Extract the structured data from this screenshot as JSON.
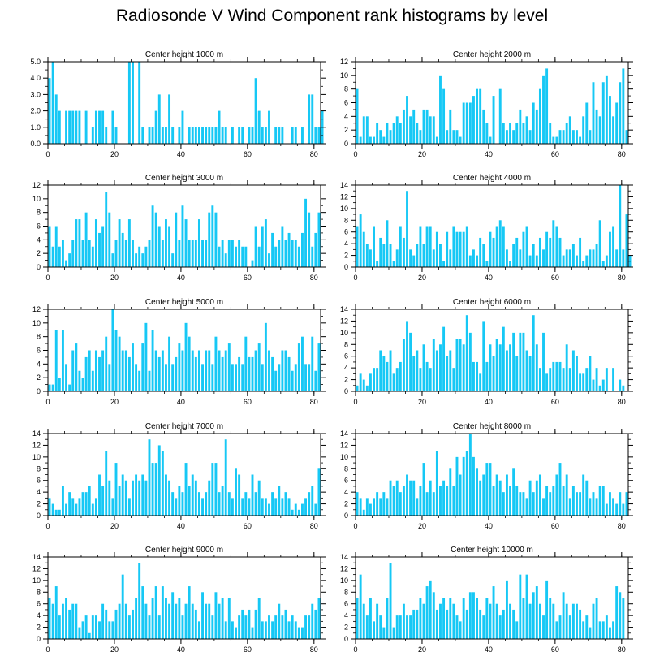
{
  "figure": {
    "title": "Radiosonde V Wind Component rank histograms by level",
    "bar_color": "#16c8f5"
  },
  "chart_data": [
    {
      "type": "bar",
      "title": "Center height 1000 m",
      "xlim": [
        0,
        82
      ],
      "ylim": [
        0,
        5
      ],
      "xticks": [
        0,
        20,
        40,
        60,
        80
      ],
      "yticks": [
        "0.0",
        "1.0",
        "2.0",
        "3.0",
        "4.0",
        "5.0"
      ],
      "values": [
        4,
        5,
        3,
        2,
        0,
        2,
        2,
        2,
        2,
        2,
        0,
        2,
        0,
        1,
        2,
        2,
        2,
        1,
        0,
        2,
        1,
        0,
        0,
        0,
        5,
        5,
        0,
        5,
        1,
        0,
        1,
        1,
        2,
        3,
        1,
        1,
        3,
        1,
        0,
        1,
        2,
        0,
        1,
        1,
        1,
        1,
        1,
        1,
        1,
        1,
        1,
        2,
        1,
        1,
        0,
        1,
        0,
        1,
        1,
        0,
        1,
        1,
        4,
        2,
        1,
        1,
        2,
        0,
        1,
        1,
        1,
        0,
        0,
        1,
        1,
        0,
        1,
        0,
        3,
        3,
        1,
        1,
        2
      ]
    },
    {
      "type": "bar",
      "title": "Center height 2000 m",
      "xlim": [
        0,
        82
      ],
      "ylim": [
        0,
        12
      ],
      "xticks": [
        0,
        20,
        40,
        60,
        80
      ],
      "yticks": [
        "0",
        "2",
        "4",
        "6",
        "8",
        "10",
        "12"
      ],
      "values": [
        8,
        1,
        4,
        4,
        1,
        1,
        3,
        2,
        1,
        3,
        2,
        3,
        4,
        3,
        5,
        7,
        4,
        5,
        3,
        2,
        5,
        5,
        4,
        4,
        1,
        10,
        8,
        2,
        5,
        2,
        2,
        1,
        6,
        6,
        6,
        7,
        8,
        8,
        5,
        3,
        1,
        7,
        0,
        8,
        3,
        2,
        3,
        2,
        3,
        5,
        3,
        4,
        2,
        6,
        5,
        8,
        10,
        11,
        3,
        1,
        1,
        2,
        2,
        3,
        4,
        2,
        2,
        1,
        4,
        6,
        2,
        9,
        5,
        4,
        9,
        10,
        7,
        4,
        6,
        9,
        11,
        2
      ]
    },
    {
      "type": "bar",
      "title": "Center height 3000 m",
      "xlim": [
        0,
        82
      ],
      "ylim": [
        0,
        12
      ],
      "xticks": [
        0,
        20,
        40,
        60,
        80
      ],
      "yticks": [
        "0",
        "2",
        "4",
        "6",
        "8",
        "10",
        "12"
      ],
      "values": [
        6,
        3,
        6,
        3,
        4,
        1,
        2,
        4,
        7,
        7,
        4,
        8,
        4,
        3,
        7,
        5,
        6,
        11,
        8,
        2,
        4,
        7,
        5,
        4,
        7,
        4,
        2,
        3,
        2,
        3,
        4,
        9,
        8,
        6,
        4,
        7,
        6,
        2,
        8,
        4,
        9,
        7,
        4,
        4,
        4,
        7,
        4,
        4,
        8,
        9,
        8,
        3,
        4,
        2,
        4,
        4,
        3,
        4,
        3,
        3,
        0,
        1,
        6,
        3,
        6,
        7,
        2,
        5,
        3,
        4,
        6,
        4,
        5,
        4,
        4,
        3,
        5,
        10,
        8,
        3,
        5,
        8
      ]
    },
    {
      "type": "bar",
      "title": "Center height 4000 m",
      "xlim": [
        0,
        82
      ],
      "ylim": [
        0,
        14
      ],
      "xticks": [
        0,
        20,
        40,
        60,
        80
      ],
      "yticks": [
        "0",
        "2",
        "4",
        "6",
        "8",
        "10",
        "12",
        "14"
      ],
      "values": [
        7,
        9,
        6,
        4,
        3,
        7,
        1,
        5,
        4,
        8,
        4,
        1,
        3,
        7,
        5,
        13,
        3,
        2,
        4,
        7,
        4,
        7,
        7,
        3,
        6,
        4,
        1,
        6,
        3,
        7,
        6,
        6,
        6,
        7,
        2,
        3,
        2,
        5,
        4,
        1,
        6,
        5,
        7,
        8,
        7,
        3,
        1,
        4,
        5,
        3,
        6,
        7,
        2,
        4,
        2,
        5,
        3,
        6,
        5,
        8,
        7,
        5,
        2,
        3,
        3,
        4,
        2,
        5,
        1,
        2,
        3,
        3,
        4,
        8,
        1,
        2,
        6,
        7,
        3,
        14,
        3,
        9,
        2
      ]
    },
    {
      "type": "bar",
      "title": "Center height 5000 m",
      "xlim": [
        0,
        82
      ],
      "ylim": [
        0,
        12
      ],
      "xticks": [
        0,
        20,
        40,
        60,
        80
      ],
      "yticks": [
        "0",
        "2",
        "4",
        "6",
        "8",
        "10",
        "12"
      ],
      "values": [
        1,
        1,
        9,
        2,
        9,
        4,
        1,
        6,
        7,
        3,
        2,
        5,
        6,
        3,
        6,
        5,
        6,
        8,
        4,
        12,
        9,
        8,
        6,
        6,
        5,
        7,
        4,
        3,
        7,
        10,
        3,
        9,
        6,
        5,
        6,
        4,
        8,
        4,
        5,
        7,
        6,
        10,
        8,
        6,
        5,
        6,
        4,
        6,
        6,
        4,
        8,
        6,
        5,
        6,
        7,
        4,
        4,
        5,
        4,
        8,
        5,
        5,
        6,
        7,
        4,
        10,
        6,
        5,
        3,
        4,
        6,
        6,
        5,
        3,
        4,
        7,
        8,
        4,
        4,
        8,
        3,
        7
      ]
    },
    {
      "type": "bar",
      "title": "Center height 6000 m",
      "xlim": [
        0,
        82
      ],
      "ylim": [
        0,
        14
      ],
      "xticks": [
        0,
        20,
        40,
        60,
        80
      ],
      "yticks": [
        "0",
        "2",
        "4",
        "6",
        "8",
        "10",
        "12",
        "14"
      ],
      "values": [
        1,
        3,
        2,
        1,
        3,
        4,
        4,
        7,
        6,
        5,
        7,
        3,
        4,
        5,
        9,
        12,
        10,
        6,
        7,
        4,
        8,
        5,
        4,
        9,
        7,
        8,
        11,
        6,
        7,
        4,
        9,
        9,
        8,
        13,
        10,
        5,
        5,
        3,
        12,
        5,
        8,
        6,
        9,
        8,
        11,
        7,
        8,
        10,
        6,
        10,
        10,
        7,
        6,
        13,
        8,
        4,
        10,
        3,
        4,
        5,
        5,
        5,
        4,
        8,
        4,
        7,
        6,
        3,
        3,
        4,
        6,
        2,
        4,
        1,
        2,
        4,
        0,
        4,
        0,
        2,
        1
      ]
    },
    {
      "type": "bar",
      "title": "Center height 7000 m",
      "xlim": [
        0,
        82
      ],
      "ylim": [
        0,
        14
      ],
      "xticks": [
        0,
        20,
        40,
        60,
        80
      ],
      "yticks": [
        "0",
        "2",
        "4",
        "6",
        "8",
        "10",
        "12",
        "14"
      ],
      "values": [
        3,
        2,
        1,
        1,
        5,
        2,
        4,
        3,
        2,
        3,
        4,
        4,
        5,
        2,
        3,
        7,
        5,
        11,
        6,
        3,
        9,
        5,
        7,
        6,
        3,
        6,
        7,
        6,
        7,
        6,
        13,
        9,
        9,
        12,
        11,
        7,
        6,
        4,
        3,
        5,
        4,
        9,
        5,
        7,
        6,
        4,
        3,
        4,
        6,
        9,
        9,
        4,
        5,
        13,
        4,
        3,
        8,
        7,
        3,
        4,
        3,
        7,
        4,
        6,
        3,
        3,
        2,
        4,
        3,
        5,
        3,
        4,
        3,
        1,
        2,
        1,
        2,
        3,
        4,
        5,
        2,
        8
      ]
    },
    {
      "type": "bar",
      "title": "Center height 8000 m",
      "xlim": [
        0,
        82
      ],
      "ylim": [
        0,
        14
      ],
      "xticks": [
        0,
        20,
        40,
        60,
        80
      ],
      "yticks": [
        "0",
        "2",
        "4",
        "6",
        "8",
        "10",
        "12",
        "14"
      ],
      "values": [
        4,
        3,
        1,
        3,
        2,
        3,
        4,
        3,
        4,
        3,
        6,
        5,
        6,
        4,
        5,
        7,
        6,
        6,
        3,
        5,
        9,
        4,
        6,
        4,
        11,
        5,
        6,
        5,
        8,
        5,
        10,
        7,
        10,
        11,
        14,
        10,
        8,
        6,
        7,
        9,
        9,
        5,
        7,
        6,
        4,
        7,
        5,
        8,
        5,
        4,
        4,
        3,
        6,
        4,
        6,
        7,
        3,
        5,
        4,
        5,
        7,
        9,
        5,
        7,
        3,
        5,
        4,
        4,
        7,
        6,
        3,
        4,
        3,
        5,
        5,
        2,
        4,
        3,
        2,
        4,
        2,
        4
      ]
    },
    {
      "type": "bar",
      "title": "Center height 9000 m",
      "xlim": [
        0,
        82
      ],
      "ylim": [
        0,
        14
      ],
      "xticks": [
        0,
        20,
        40,
        60,
        80
      ],
      "yticks": [
        "0",
        "2",
        "4",
        "6",
        "8",
        "10",
        "12",
        "14"
      ],
      "values": [
        7,
        6,
        9,
        4,
        6,
        7,
        5,
        6,
        6,
        2,
        3,
        4,
        1,
        4,
        4,
        3,
        6,
        5,
        3,
        3,
        5,
        6,
        11,
        6,
        4,
        5,
        7,
        13,
        9,
        6,
        4,
        7,
        9,
        4,
        9,
        7,
        6,
        8,
        6,
        7,
        4,
        6,
        9,
        6,
        5,
        3,
        8,
        6,
        6,
        4,
        8,
        6,
        7,
        3,
        7,
        3,
        2,
        4,
        5,
        4,
        5,
        2,
        5,
        7,
        3,
        3,
        4,
        3,
        4,
        6,
        4,
        5,
        3,
        4,
        3,
        2,
        2,
        4,
        4,
        6,
        5,
        7
      ]
    },
    {
      "type": "bar",
      "title": "Center height 10000 m",
      "xlim": [
        0,
        82
      ],
      "ylim": [
        0,
        14
      ],
      "xticks": [
        0,
        20,
        40,
        60,
        80
      ],
      "yticks": [
        "0",
        "2",
        "4",
        "6",
        "8",
        "10",
        "12",
        "14"
      ],
      "values": [
        7,
        11,
        6,
        4,
        7,
        3,
        6,
        4,
        2,
        7,
        13,
        2,
        4,
        4,
        6,
        4,
        4,
        5,
        5,
        7,
        6,
        9,
        10,
        8,
        5,
        6,
        7,
        5,
        7,
        6,
        4,
        3,
        7,
        5,
        8,
        8,
        7,
        5,
        4,
        7,
        6,
        9,
        6,
        4,
        5,
        10,
        6,
        5,
        3,
        11,
        7,
        11,
        6,
        8,
        9,
        6,
        4,
        10,
        7,
        6,
        3,
        4,
        8,
        6,
        4,
        6,
        6,
        5,
        3,
        4,
        2,
        6,
        7,
        3,
        3,
        4,
        2,
        3,
        9,
        8,
        7
      ]
    }
  ]
}
